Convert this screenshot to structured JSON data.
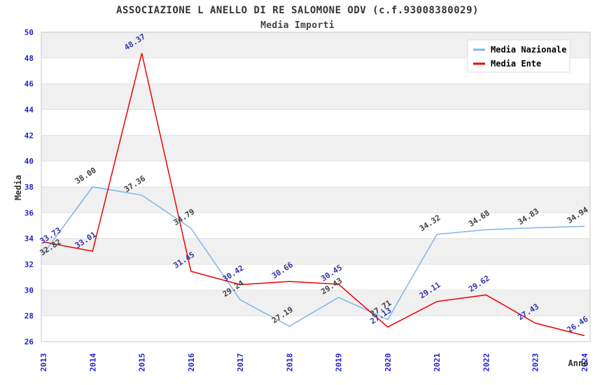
{
  "header": {
    "title": "ASSOCIAZIONE L ANELLO DI RE SALOMONE ODV (c.f.93008380029)",
    "subtitle": "Media Importi"
  },
  "chart_data": {
    "type": "line",
    "x": [
      "2013",
      "2014",
      "2015",
      "2016",
      "2017",
      "2018",
      "2019",
      "2020",
      "2021",
      "2022",
      "2023",
      "2024"
    ],
    "series": [
      {
        "name": "Media Nazionale",
        "color": "#7CB5EC",
        "label_color": "#404040",
        "values": [
          32.82,
          38.0,
          37.36,
          34.79,
          29.24,
          27.19,
          29.43,
          27.71,
          34.32,
          34.68,
          34.83,
          34.94
        ]
      },
      {
        "name": "Media Ente",
        "color": "#F00000",
        "label_color": "#3333AA",
        "values": [
          33.73,
          33.01,
          48.37,
          31.45,
          30.42,
          30.66,
          30.45,
          27.13,
          29.11,
          29.62,
          27.43,
          26.46
        ]
      }
    ],
    "xlabel": "Anno",
    "ylabel": "Media",
    "ylim": [
      26,
      50
    ],
    "ytick_step": 2,
    "grid": true,
    "bands": "alternating-gray",
    "legend_position": "top-right",
    "tick_label_color": "#2222CC",
    "band_color": "#F0F0F0",
    "grid_color": "#E2E2E2",
    "axis_line_color": "#C8C8C8"
  }
}
